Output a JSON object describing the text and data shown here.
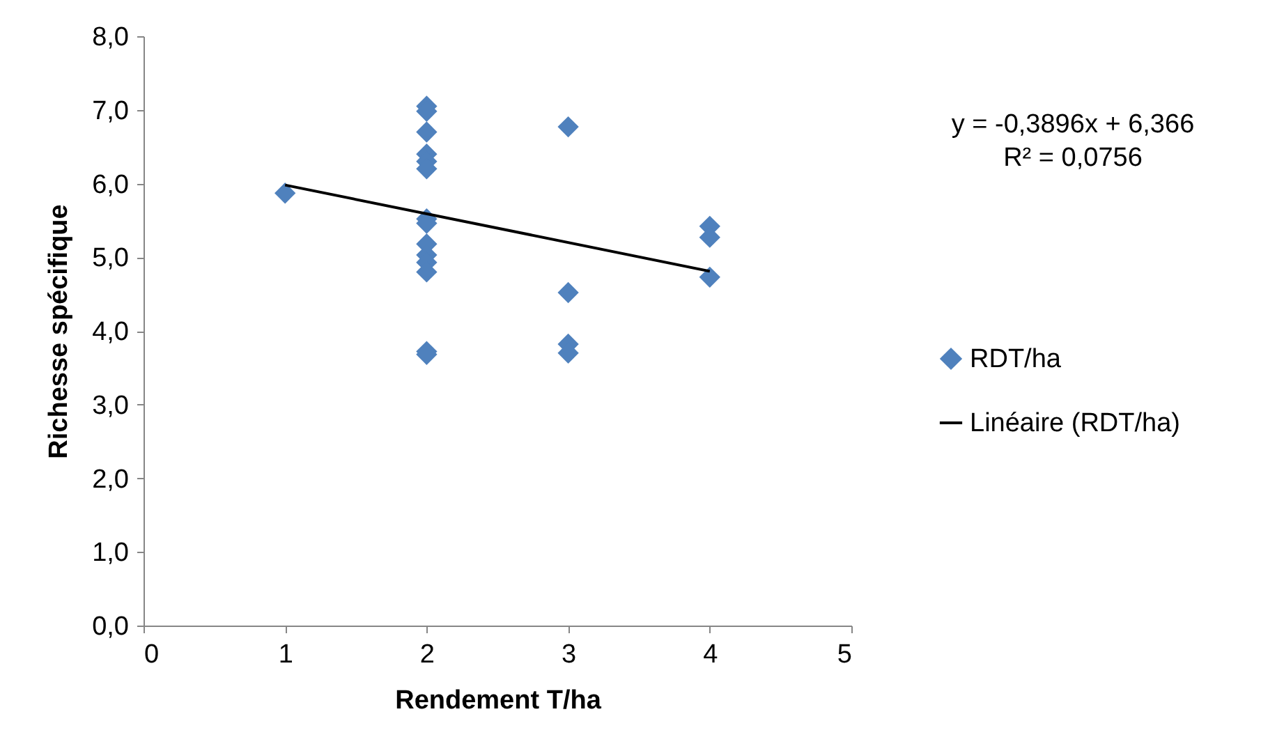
{
  "chart_data": {
    "type": "scatter",
    "xlabel": "Rendement T/ha",
    "ylabel": "Richesse spécifique",
    "legend": "right",
    "grid": false,
    "xlim": [
      0,
      5
    ],
    "xticks": [
      0,
      1,
      2,
      3,
      4,
      5
    ],
    "ylim": [
      0,
      8
    ],
    "yticks": [
      {
        "value": 0,
        "label": "0,0"
      },
      {
        "value": 1,
        "label": "1,0"
      },
      {
        "value": 2,
        "label": "2,0"
      },
      {
        "value": 3,
        "label": "3,0"
      },
      {
        "value": 4,
        "label": "4,0"
      },
      {
        "value": 5,
        "label": "5,0"
      },
      {
        "value": 6,
        "label": "6,0"
      },
      {
        "value": 7,
        "label": "7,0"
      },
      {
        "value": 8,
        "label": "8,0"
      }
    ],
    "annotations": [
      "y = -0,3896x + 6,366",
      "R² = 0,0756"
    ],
    "series": [
      {
        "name": "RDT/ha",
        "color": "#4f81bd",
        "marker": "diamond",
        "x": [
          1,
          2,
          2,
          2,
          2,
          2,
          2,
          2,
          2,
          2,
          2,
          2,
          2,
          2,
          2,
          3,
          3,
          3,
          3,
          4,
          4,
          4
        ],
        "values": [
          5.87,
          7.05,
          6.98,
          6.7,
          6.4,
          6.3,
          6.2,
          5.52,
          5.46,
          5.18,
          5.03,
          4.93,
          4.8,
          3.72,
          3.68,
          6.77,
          4.52,
          3.82,
          3.7,
          5.42,
          5.27,
          4.73
        ]
      },
      {
        "name": "Linéaire (RDT/ha)",
        "type": "line",
        "color": "#000000",
        "marker": "none",
        "line_style": "solid",
        "x": [
          1,
          4
        ],
        "values": [
          5.98,
          4.81
        ]
      }
    ]
  }
}
